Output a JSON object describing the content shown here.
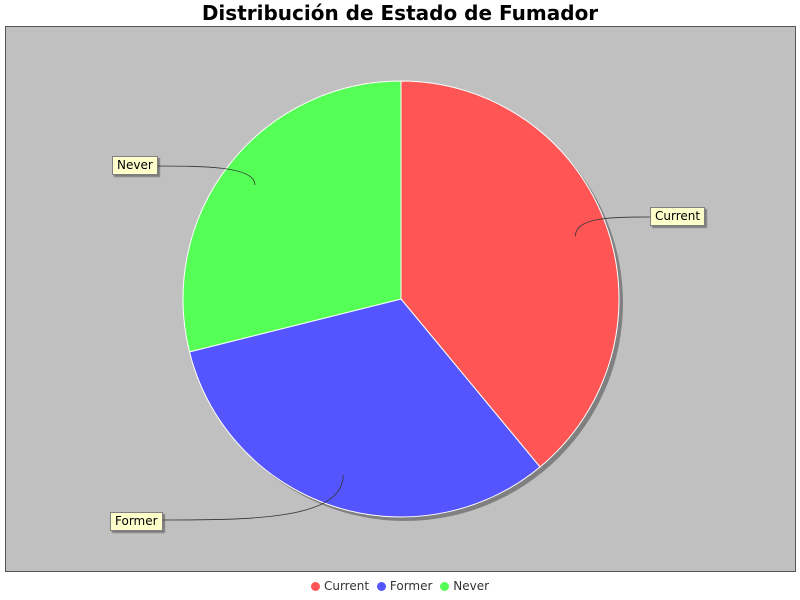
{
  "chart_data": {
    "type": "pie",
    "title": "Distribución de Estado de Fumador",
    "categories": [
      "Current",
      "Former",
      "Never"
    ],
    "values": [
      39.0,
      32.1,
      28.9
    ],
    "colors": [
      "#ff5555",
      "#5555ff",
      "#55ff55"
    ],
    "legend_position": "bottom",
    "background": "#c0c0c0"
  }
}
